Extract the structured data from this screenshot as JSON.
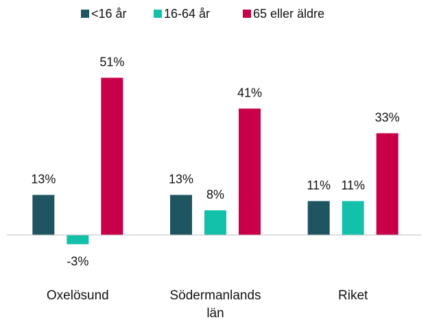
{
  "chart_data": {
    "type": "bar",
    "categories": [
      "Oxelösund",
      "Södermanlands län",
      "Riket"
    ],
    "series": [
      {
        "name": "<16 år",
        "color": "#1f5560",
        "values": [
          13,
          13,
          11
        ],
        "value_labels": [
          "13%",
          "13%",
          "11%"
        ]
      },
      {
        "name": "16-64 år",
        "color": "#13c1aa",
        "values": [
          -3,
          8,
          11
        ],
        "value_labels": [
          "-3%",
          "8%",
          "11%"
        ]
      },
      {
        "name": "65 eller äldre",
        "color": "#c8004a",
        "values": [
          51,
          41,
          33
        ],
        "value_labels": [
          "51%",
          "41%",
          "33%"
        ]
      }
    ],
    "ylim": [
      -10,
      60
    ],
    "legend": "top"
  }
}
